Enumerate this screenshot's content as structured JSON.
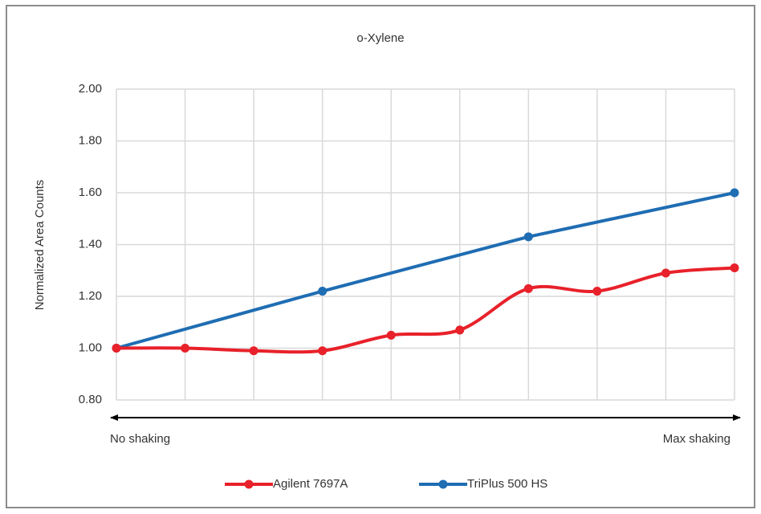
{
  "chart_data": {
    "type": "line",
    "title": "o-Xylene",
    "y_label": "Normalized Area Counts",
    "annotations": [
      "No shaking",
      "Max shaking"
    ],
    "categories": [
      null,
      null,
      null,
      null,
      null,
      null,
      null,
      null,
      null,
      null
    ],
    "series": [
      {
        "name": "Agilent 7697A",
        "color": "#e8212a",
        "smooth": true,
        "values": [
          1.0,
          1.0,
          0.99,
          0.99,
          1.05,
          1.07,
          1.23,
          1.22,
          1.29,
          1.31
        ]
      },
      {
        "name": "TriPlus 500 HS",
        "color": "#1f6db3",
        "smooth": false,
        "span_gaps": true,
        "values": [
          1.0,
          null,
          null,
          1.22,
          null,
          null,
          1.43,
          null,
          null,
          1.6
        ]
      }
    ],
    "ylim": [
      0.8,
      2.0
    ],
    "yticks": [
      {
        "value": 0.8,
        "label": "0.80"
      },
      {
        "value": 1.0,
        "label": "1.00"
      },
      {
        "value": 1.2,
        "label": "1.20"
      },
      {
        "value": 1.4,
        "label": "1.40"
      },
      {
        "value": 1.6,
        "label": "1.60"
      },
      {
        "value": 1.8,
        "label": "1.80"
      },
      {
        "value": 2.0,
        "label": "2.00"
      }
    ],
    "grid": true,
    "legend": "bottom"
  }
}
